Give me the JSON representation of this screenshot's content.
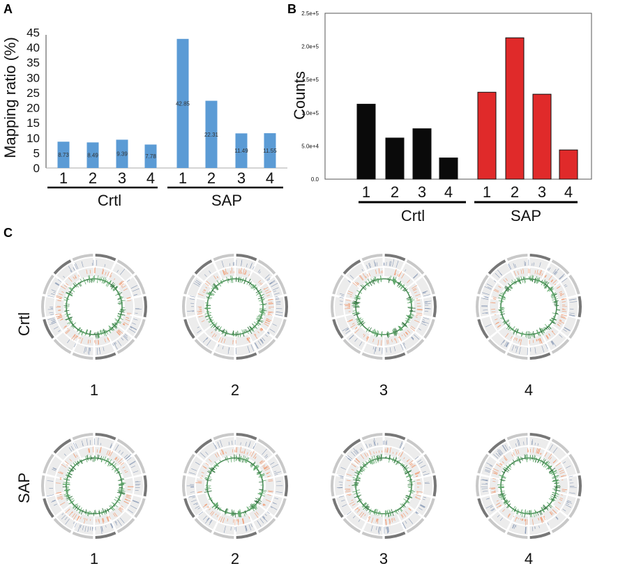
{
  "panels": {
    "a": "A",
    "b": "B",
    "c": "C"
  },
  "chart_data": [
    {
      "id": "A",
      "type": "bar",
      "ylabel": "Mapping ratio (%)",
      "ylim": [
        0,
        45
      ],
      "yticks": [
        "0",
        "5",
        "10",
        "15",
        "20",
        "25",
        "30",
        "35",
        "40",
        "45"
      ],
      "categories": [
        "1",
        "2",
        "3",
        "4",
        "1",
        "2",
        "3",
        "4"
      ],
      "values": [
        8.73,
        8.49,
        9.39,
        7.78,
        42.85,
        22.31,
        11.49,
        11.55
      ],
      "value_labels": [
        "8.73",
        "8.49",
        "9.39",
        "7.78",
        "42.85",
        "22.31",
        "11.49",
        "11.55"
      ],
      "groups": [
        "Crtl",
        "SAP"
      ],
      "colors": [
        "#5b9bd5",
        "#5b9bd5",
        "#5b9bd5",
        "#5b9bd5",
        "#5b9bd5",
        "#5b9bd5",
        "#5b9bd5",
        "#5b9bd5"
      ]
    },
    {
      "id": "B",
      "type": "bar",
      "ylabel": "Counts",
      "ylim": [
        0,
        250000
      ],
      "yticks": [
        "0.0",
        "5.0e+4",
        "1.0e+5",
        "1.5e+5",
        "2.0e+5",
        "2.5e+5"
      ],
      "categories": [
        "1",
        "2",
        "3",
        "4",
        "1",
        "2",
        "3",
        "4"
      ],
      "values": [
        113000,
        62000,
        76000,
        32000,
        131000,
        213000,
        128000,
        44000
      ],
      "groups": [
        "Crtl",
        "SAP"
      ],
      "colors": [
        "#0a0a0a",
        "#0a0a0a",
        "#0a0a0a",
        "#0a0a0a",
        "#e02a2a",
        "#e02a2a",
        "#e02a2a",
        "#e02a2a"
      ]
    },
    {
      "id": "C",
      "type": "other",
      "description_free": true,
      "rows": [
        {
          "label": "Crtl",
          "samples": [
            "1",
            "2",
            "3",
            "4"
          ]
        },
        {
          "label": "SAP",
          "samples": [
            "1",
            "2",
            "3",
            "4"
          ]
        }
      ]
    }
  ]
}
